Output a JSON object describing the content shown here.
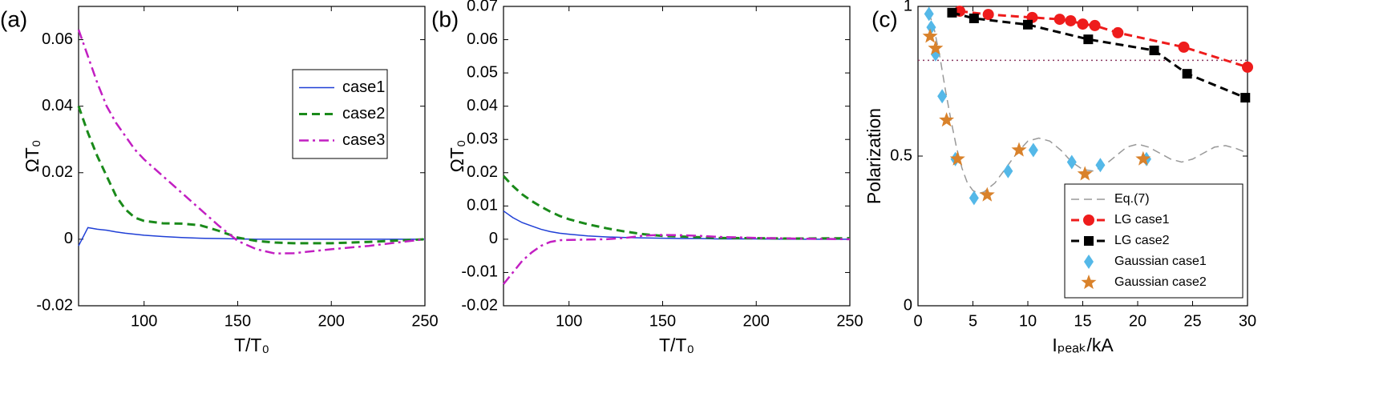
{
  "chart_data": [
    {
      "type": "line",
      "panel_label": "(a)",
      "xlabel": "T/T₀",
      "ylabel": "ΩT₀",
      "xlim": [
        65,
        250
      ],
      "xticks": [
        100,
        150,
        200,
        250
      ],
      "ylim": [
        -0.02,
        0.07
      ],
      "yticks": [
        -0.02,
        0,
        0.02,
        0.04,
        0.06
      ],
      "legend": "upper right",
      "x": [
        65,
        70,
        75,
        80,
        85,
        90,
        95,
        100,
        110,
        120,
        130,
        140,
        150,
        160,
        170,
        180,
        200,
        220,
        250
      ],
      "series": [
        {
          "name": "case1",
          "color": "#1f3fd6",
          "dash": "solid",
          "linewidth": 1.5,
          "marker": "none",
          "values": [
            -0.002,
            0.0035,
            0.003,
            0.0027,
            0.0022,
            0.0018,
            0.0015,
            0.0012,
            0.0008,
            0.0005,
            0.0003,
            0.0002,
            0.0001,
            0,
            0,
            0,
            0,
            0,
            0
          ]
        },
        {
          "name": "case2",
          "color": "#1a8a1a",
          "dash": "dashed",
          "linewidth": 3,
          "marker": "none",
          "values": [
            0.04,
            0.032,
            0.025,
            0.019,
            0.013,
            0.009,
            0.0065,
            0.0055,
            0.0048,
            0.0047,
            0.0042,
            0.0025,
            0.0005,
            -0.0005,
            -0.001,
            -0.0012,
            -0.0012,
            -0.0008,
            0
          ]
        },
        {
          "name": "case3",
          "color": "#c21fc2",
          "dash": "dashdot",
          "linewidth": 2.5,
          "marker": "none",
          "values": [
            0.063,
            0.055,
            0.047,
            0.04,
            0.035,
            0.031,
            0.027,
            0.024,
            0.019,
            0.014,
            0.009,
            0.004,
            -0.0005,
            -0.003,
            -0.0043,
            -0.0042,
            -0.003,
            -0.002,
            0
          ]
        }
      ]
    },
    {
      "type": "line",
      "panel_label": "(b)",
      "xlabel": "T/T₀",
      "ylabel": "ΩT₀",
      "xlim": [
        65,
        250
      ],
      "xticks": [
        100,
        150,
        200,
        250
      ],
      "ylim": [
        -0.02,
        0.07
      ],
      "yticks": [
        -0.02,
        -0.01,
        0,
        0.01,
        0.02,
        0.03,
        0.04,
        0.05,
        0.06,
        0.07
      ],
      "x": [
        65,
        70,
        75,
        80,
        85,
        90,
        95,
        100,
        110,
        120,
        130,
        140,
        150,
        160,
        170,
        180,
        200,
        220,
        250
      ],
      "series": [
        {
          "color": "#1f3fd6",
          "dash": "solid",
          "linewidth": 1.5,
          "marker": "none",
          "values": [
            0.0085,
            0.0065,
            0.005,
            0.004,
            0.003,
            0.0023,
            0.0018,
            0.0015,
            0.001,
            0.0007,
            0.0005,
            0.0004,
            0.0003,
            0.0002,
            0.0002,
            0.0001,
            0.0001,
            0,
            0
          ]
        },
        {
          "color": "#1a8a1a",
          "dash": "dashed",
          "linewidth": 3,
          "marker": "none",
          "values": [
            0.019,
            0.016,
            0.0135,
            0.0115,
            0.0098,
            0.0083,
            0.007,
            0.006,
            0.0045,
            0.0033,
            0.0023,
            0.0015,
            0.001,
            0.0008,
            0.0006,
            0.0004,
            0.0003,
            0.0002,
            0.0003
          ]
        },
        {
          "color": "#c21fc2",
          "dash": "dashdot",
          "linewidth": 2.5,
          "marker": "none",
          "values": [
            -0.0135,
            -0.01,
            -0.0065,
            -0.004,
            -0.002,
            -0.0008,
            -0.0003,
            -0.0002,
            -0.0001,
            0,
            0.0004,
            0.0011,
            0.0013,
            0.0012,
            0.001,
            0.0007,
            0.0004,
            0.0002,
            0
          ]
        }
      ]
    },
    {
      "type": "line",
      "panel_label": "(c)",
      "xlabel": "Iₚₑₐₖ/kA",
      "ylabel": "Polarization",
      "xlim": [
        0,
        30
      ],
      "xticks": [
        0,
        5,
        10,
        15,
        20,
        25,
        30
      ],
      "ylim": [
        0,
        1
      ],
      "yticks": [
        0,
        0.5,
        1
      ],
      "legend": "lower right",
      "hline": {
        "value": 0.82,
        "color": "#8b3a62"
      },
      "series": [
        {
          "name": "Eq.(7)",
          "color": "#999999",
          "dash": "dashed",
          "linewidth": 1.5,
          "marker": "none",
          "x": [
            1,
            1.5,
            2,
            2.5,
            3,
            3.5,
            4,
            4.5,
            5,
            5.5,
            6,
            7,
            8,
            9,
            10,
            11,
            12,
            13,
            14,
            15,
            16,
            17,
            18,
            19,
            20,
            21,
            22,
            23,
            24,
            25,
            26,
            27,
            28,
            29,
            30
          ],
          "values": [
            0.98,
            0.92,
            0.83,
            0.72,
            0.62,
            0.53,
            0.46,
            0.41,
            0.385,
            0.375,
            0.38,
            0.41,
            0.46,
            0.51,
            0.55,
            0.56,
            0.55,
            0.52,
            0.48,
            0.455,
            0.45,
            0.47,
            0.5,
            0.53,
            0.54,
            0.53,
            0.51,
            0.49,
            0.48,
            0.49,
            0.51,
            0.53,
            0.535,
            0.525,
            0.51
          ]
        },
        {
          "name": "LG case1",
          "color": "#ee1c1c",
          "dash": "dashed",
          "linewidth": 3,
          "marker": "circle",
          "x": [
            3.8,
            6.4,
            10.4,
            12.9,
            13.9,
            15,
            16.1,
            18.2,
            24.2,
            30
          ],
          "values": [
            0.984,
            0.973,
            0.963,
            0.957,
            0.952,
            0.941,
            0.936,
            0.912,
            0.864,
            0.797
          ]
        },
        {
          "name": "LG case2",
          "color": "#000000",
          "dash": "dashed",
          "linewidth": 3,
          "marker": "square",
          "x": [
            3.1,
            5.1,
            10,
            15.5,
            21.5,
            24.5,
            29.8
          ],
          "values": [
            0.979,
            0.96,
            0.939,
            0.89,
            0.853,
            0.775,
            0.695
          ]
        },
        {
          "name": "Gaussian case1",
          "color": "#54b8e8",
          "dash": "none",
          "linewidth": 0,
          "marker": "diamond",
          "x": [
            1,
            1.2,
            1.6,
            2.2,
            3.4,
            5.1,
            8.2,
            10.5,
            14,
            16.6,
            20.8
          ],
          "values": [
            0.975,
            0.93,
            0.84,
            0.7,
            0.49,
            0.36,
            0.45,
            0.52,
            0.48,
            0.47,
            0.49
          ]
        },
        {
          "name": "Gaussian case2",
          "color": "#d9822b",
          "dash": "none",
          "linewidth": 0,
          "marker": "star",
          "x": [
            1.1,
            1.6,
            2.6,
            3.6,
            6.3,
            9.2,
            15.2,
            20.5
          ],
          "values": [
            0.9,
            0.86,
            0.62,
            0.49,
            0.37,
            0.52,
            0.44,
            0.49
          ]
        }
      ]
    }
  ]
}
